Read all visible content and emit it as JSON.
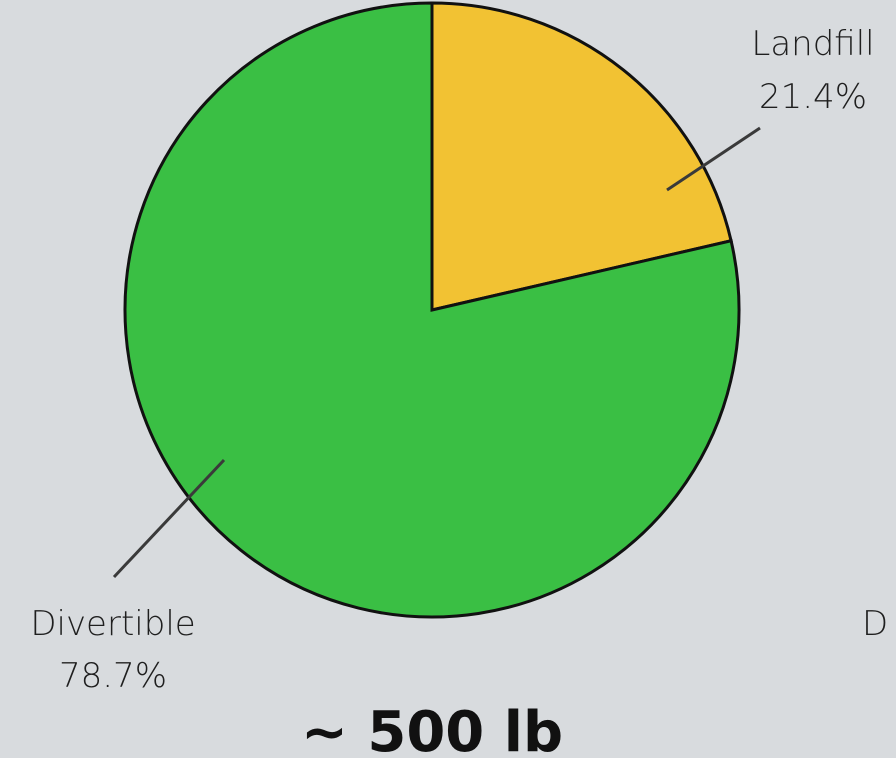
{
  "chart_data": {
    "type": "pie",
    "slices": [
      {
        "name": "Landfill",
        "value": 21.4,
        "percent_label": "21.4%",
        "color": "#f2c233"
      },
      {
        "name": "Divertible",
        "value": 78.7,
        "percent_label": "78.7%",
        "color": "#3abf44"
      }
    ],
    "total_label": "~ 500 lb",
    "offscreen_label_fragment": "D"
  }
}
